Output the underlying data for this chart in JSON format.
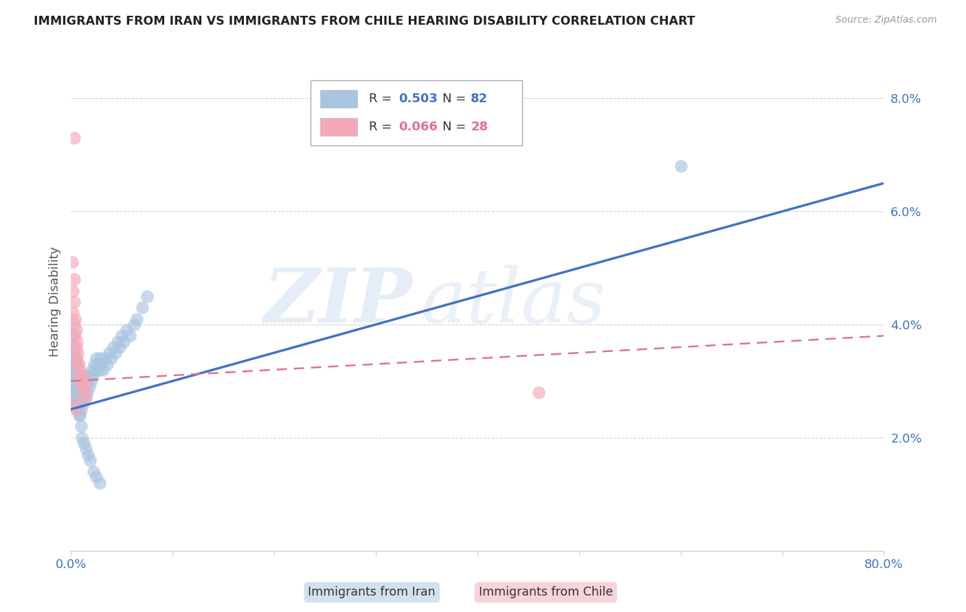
{
  "title": "IMMIGRANTS FROM IRAN VS IMMIGRANTS FROM CHILE HEARING DISABILITY CORRELATION CHART",
  "source": "Source: ZipAtlas.com",
  "ylabel": "Hearing Disability",
  "xlim": [
    0.0,
    0.8
  ],
  "ylim": [
    0.0,
    0.088
  ],
  "xticks": [
    0.0,
    0.1,
    0.2,
    0.3,
    0.4,
    0.5,
    0.6,
    0.7,
    0.8
  ],
  "xticklabels": [
    "0.0%",
    "",
    "",
    "",
    "",
    "",
    "",
    "",
    "80.0%"
  ],
  "yticks": [
    0.0,
    0.02,
    0.04,
    0.06,
    0.08
  ],
  "yticklabels": [
    "",
    "2.0%",
    "4.0%",
    "6.0%",
    "8.0%"
  ],
  "iran_R": 0.503,
  "iran_N": 82,
  "chile_R": 0.066,
  "chile_N": 28,
  "iran_color": "#a8c4e0",
  "chile_color": "#f4a8b8",
  "iran_line_color": "#4472c4",
  "chile_line_color": "#e07090",
  "axis_color": "#4472c4",
  "watermark": "ZIPatlas",
  "iran_trend_x0": 0.0,
  "iran_trend_y0": 0.025,
  "iran_trend_x1": 0.8,
  "iran_trend_y1": 0.065,
  "chile_trend_x0": 0.0,
  "chile_trend_y0": 0.03,
  "chile_trend_x1": 0.8,
  "chile_trend_y1": 0.038,
  "iran_x": [
    0.001,
    0.002,
    0.002,
    0.003,
    0.003,
    0.003,
    0.004,
    0.004,
    0.004,
    0.005,
    0.005,
    0.005,
    0.006,
    0.006,
    0.006,
    0.007,
    0.007,
    0.008,
    0.008,
    0.008,
    0.009,
    0.009,
    0.01,
    0.01,
    0.011,
    0.011,
    0.012,
    0.012,
    0.013,
    0.014,
    0.014,
    0.015,
    0.016,
    0.016,
    0.017,
    0.018,
    0.019,
    0.02,
    0.021,
    0.022,
    0.023,
    0.024,
    0.025,
    0.026,
    0.028,
    0.029,
    0.03,
    0.032,
    0.034,
    0.036,
    0.038,
    0.04,
    0.042,
    0.044,
    0.046,
    0.048,
    0.05,
    0.052,
    0.055,
    0.058,
    0.062,
    0.065,
    0.07,
    0.075,
    0.002,
    0.003,
    0.004,
    0.005,
    0.006,
    0.007,
    0.008,
    0.009,
    0.01,
    0.011,
    0.013,
    0.015,
    0.017,
    0.019,
    0.022,
    0.025,
    0.028,
    0.6
  ],
  "iran_y": [
    0.031,
    0.029,
    0.033,
    0.028,
    0.031,
    0.035,
    0.027,
    0.03,
    0.033,
    0.026,
    0.029,
    0.032,
    0.025,
    0.028,
    0.031,
    0.027,
    0.03,
    0.024,
    0.027,
    0.03,
    0.026,
    0.029,
    0.025,
    0.028,
    0.027,
    0.03,
    0.026,
    0.029,
    0.028,
    0.027,
    0.03,
    0.029,
    0.028,
    0.031,
    0.03,
    0.029,
    0.031,
    0.03,
    0.032,
    0.031,
    0.033,
    0.032,
    0.034,
    0.033,
    0.032,
    0.034,
    0.033,
    0.032,
    0.034,
    0.033,
    0.035,
    0.034,
    0.036,
    0.035,
    0.037,
    0.036,
    0.038,
    0.037,
    0.039,
    0.038,
    0.04,
    0.041,
    0.043,
    0.045,
    0.038,
    0.036,
    0.034,
    0.032,
    0.03,
    0.028,
    0.026,
    0.024,
    0.022,
    0.02,
    0.019,
    0.018,
    0.017,
    0.016,
    0.014,
    0.013,
    0.012,
    0.068
  ],
  "chile_x": [
    0.001,
    0.002,
    0.002,
    0.003,
    0.003,
    0.004,
    0.004,
    0.005,
    0.005,
    0.006,
    0.006,
    0.007,
    0.008,
    0.009,
    0.01,
    0.011,
    0.012,
    0.013,
    0.014,
    0.015,
    0.003,
    0.004,
    0.005,
    0.007,
    0.009,
    0.011,
    0.46,
    0.003
  ],
  "chile_y": [
    0.051,
    0.046,
    0.042,
    0.044,
    0.04,
    0.041,
    0.038,
    0.039,
    0.036,
    0.037,
    0.034,
    0.035,
    0.033,
    0.031,
    0.03,
    0.029,
    0.028,
    0.03,
    0.029,
    0.027,
    0.073,
    0.026,
    0.025,
    0.033,
    0.032,
    0.031,
    0.028,
    0.048
  ]
}
